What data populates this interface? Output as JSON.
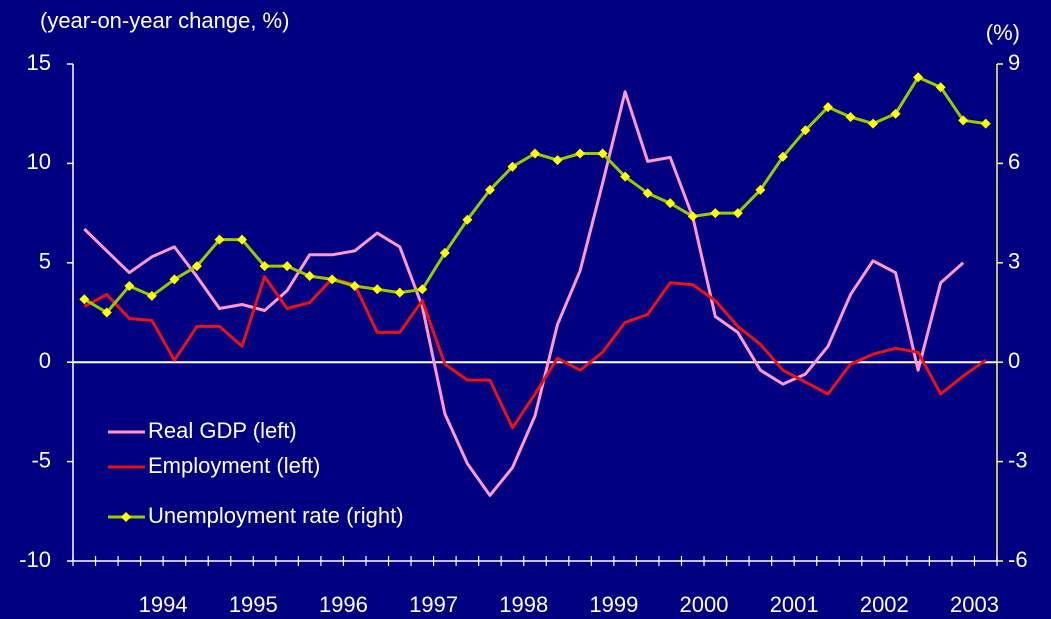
{
  "chart_data": {
    "type": "line",
    "y_axis_label": "(year-on-year change, %)",
    "y2_axis_label": "(%)",
    "categories": [
      null,
      null,
      null,
      "1994",
      null,
      null,
      null,
      "1995",
      null,
      null,
      null,
      "1996",
      null,
      null,
      null,
      "1997",
      null,
      null,
      null,
      "1998",
      null,
      null,
      null,
      "1999",
      null,
      null,
      null,
      "2000",
      null,
      null,
      null,
      "2001",
      null,
      null,
      null,
      "2002",
      null,
      null,
      null,
      "2003",
      null
    ],
    "series": [
      {
        "name": "Real GDP (left)",
        "color": "#ff99cc",
        "values": [
          6.7,
          5.6,
          4.5,
          5.3,
          5.8,
          4.3,
          2.7,
          2.9,
          2.6,
          3.6,
          5.4,
          5.4,
          5.6,
          6.5,
          5.8,
          2.8,
          -2.6,
          -5.1,
          -6.7,
          -5.3,
          -2.7,
          1.9,
          4.6,
          9.0,
          13.6,
          10.1,
          10.3,
          7.3,
          2.3,
          1.5,
          -0.4,
          -1.1,
          -0.6,
          0.8,
          3.4,
          5.1,
          4.5,
          -0.4,
          4.0,
          5.0,
          null
        ]
      },
      {
        "name": "Employment (left)",
        "color": "#ee1111",
        "values": [
          2.8,
          3.4,
          2.2,
          2.1,
          0.1,
          1.8,
          1.8,
          0.8,
          4.3,
          2.7,
          3.0,
          4.2,
          3.9,
          1.5,
          1.5,
          3.1,
          -0.1,
          -0.9,
          -0.9,
          -3.3,
          -1.6,
          0.2,
          -0.4,
          0.5,
          2.0,
          2.4,
          4.0,
          3.9,
          3.1,
          1.8,
          0.9,
          -0.4,
          -1.0,
          -1.6,
          -0.1,
          0.4,
          0.7,
          0.5,
          -1.6,
          -0.7,
          0.1
        ]
      },
      {
        "name": "Unemployment rate (right)",
        "color": "#99cc00",
        "marker_color": "#ffff00",
        "axis": "y2",
        "values": [
          1.9,
          1.5,
          2.3,
          2.0,
          2.5,
          2.9,
          3.7,
          3.7,
          2.9,
          2.9,
          2.6,
          2.5,
          2.3,
          2.2,
          2.1,
          2.2,
          3.3,
          4.3,
          5.2,
          5.9,
          6.3,
          6.1,
          6.3,
          6.3,
          5.6,
          5.1,
          4.8,
          4.4,
          4.5,
          4.5,
          5.2,
          6.2,
          7.0,
          7.7,
          7.4,
          7.2,
          7.5,
          8.6,
          8.3,
          7.3,
          7.2
        ]
      }
    ],
    "ylim": [
      -10,
      15
    ],
    "yticks": [
      -10,
      -5,
      0,
      5,
      10,
      15
    ],
    "y2lim": [
      -6,
      9
    ],
    "y2ticks": [
      -6,
      -3,
      0,
      3,
      6,
      9
    ],
    "legend": "lower left"
  }
}
